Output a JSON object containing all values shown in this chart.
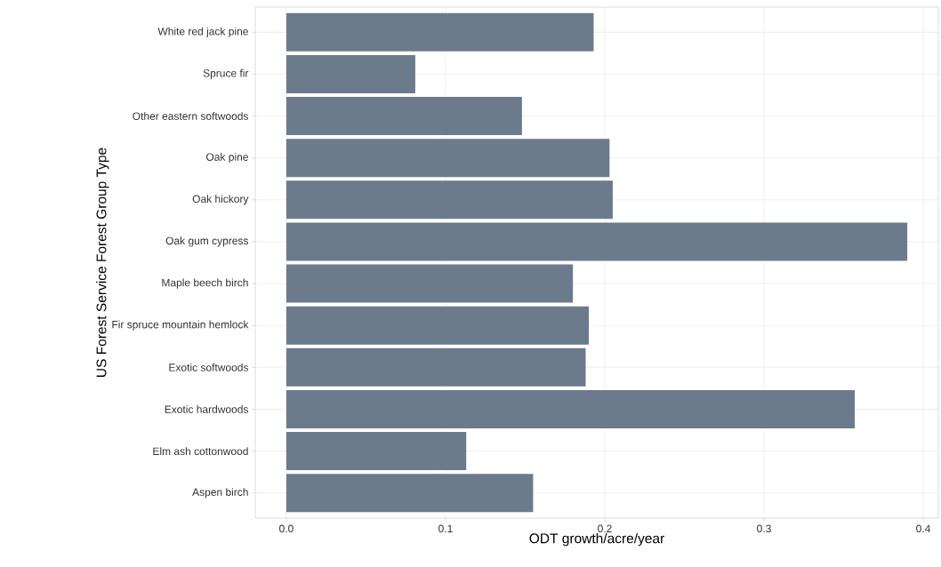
{
  "chart_data": {
    "type": "bar",
    "orientation": "horizontal",
    "xlabel": "ODT growth/acre/year",
    "ylabel": "US Forest Service Forest Group Type",
    "categories": [
      "White red jack pine",
      "Spruce fir",
      "Other eastern softwoods",
      "Oak pine",
      "Oak hickory",
      "Oak gum cypress",
      "Maple beech birch",
      "Fir spruce mountain hemlock",
      "Exotic softwoods",
      "Exotic hardwoods",
      "Elm ash cottonwood",
      "Aspen birch"
    ],
    "values": [
      0.193,
      0.081,
      0.148,
      0.203,
      0.205,
      0.39,
      0.18,
      0.19,
      0.188,
      0.357,
      0.113,
      0.155
    ],
    "color": "#6c7b8b",
    "xlim": [
      -0.0195,
      0.4095
    ],
    "xticks": [
      {
        "value": 0,
        "label": "0.0"
      },
      0.1,
      0.2,
      0.3,
      0.4
    ],
    "grid": true
  }
}
